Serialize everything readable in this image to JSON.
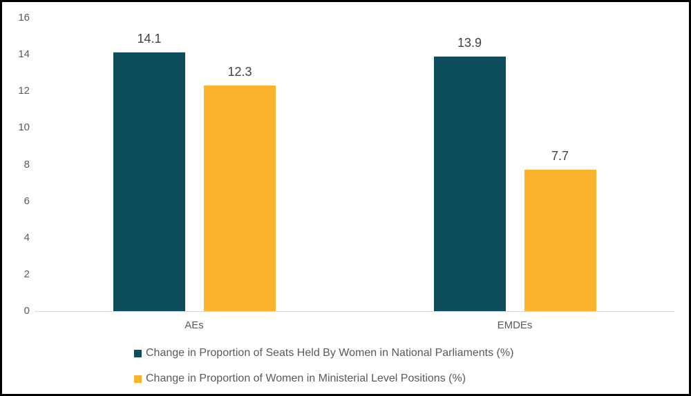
{
  "chart_data": {
    "type": "bar",
    "categories": [
      "AEs",
      "EMDEs"
    ],
    "series": [
      {
        "name": "Change in Proportion of Seats Held By Women in National Parliaments (%)",
        "color": "#0e4d5c",
        "values": [
          14.1,
          13.9
        ]
      },
      {
        "name": "Change in Proportion of Women in Ministerial Level Positions (%)",
        "color": "#fdb42c",
        "values": [
          12.3,
          7.7
        ]
      }
    ],
    "title": "",
    "xlabel": "",
    "ylabel": "",
    "ylim": [
      0,
      16
    ],
    "yticks": [
      0,
      2,
      4,
      6,
      8,
      10,
      12,
      14,
      16
    ],
    "grid": false,
    "legend_position": "bottom",
    "colors": {
      "axis_line": "#d9d9d9",
      "tick_label": "#595959",
      "data_label": "#404040",
      "frame_border": "#000000",
      "background": "#ffffff"
    }
  }
}
